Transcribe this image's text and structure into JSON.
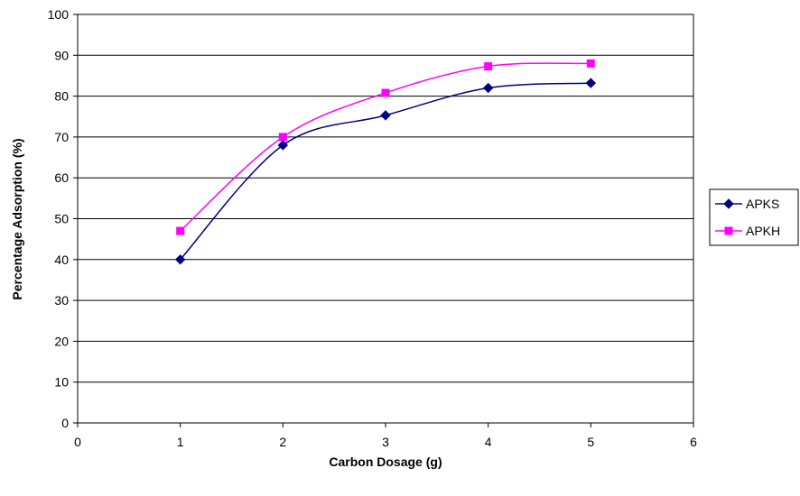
{
  "chart_data": {
    "type": "line",
    "title": "",
    "xlabel": "Carbon Dosage (g)",
    "ylabel": "Percentage Adsorption (%)",
    "xlim": [
      0,
      6
    ],
    "ylim": [
      0,
      100
    ],
    "x_ticks": [
      0,
      1,
      2,
      3,
      4,
      5,
      6
    ],
    "y_ticks": [
      0,
      10,
      20,
      30,
      40,
      50,
      60,
      70,
      80,
      90,
      100
    ],
    "grid": "horizontal",
    "legend_position": "right",
    "series": [
      {
        "name": "APKS",
        "color": "#000080",
        "marker": "diamond",
        "x": [
          1,
          2,
          3,
          4,
          5
        ],
        "values": [
          40,
          68,
          75.3,
          82,
          83.2
        ]
      },
      {
        "name": "APKH",
        "color": "#ff00ff",
        "marker": "square",
        "x": [
          1,
          2,
          3,
          4,
          5
        ],
        "values": [
          47,
          70,
          80.8,
          87.3,
          88
        ]
      }
    ]
  }
}
